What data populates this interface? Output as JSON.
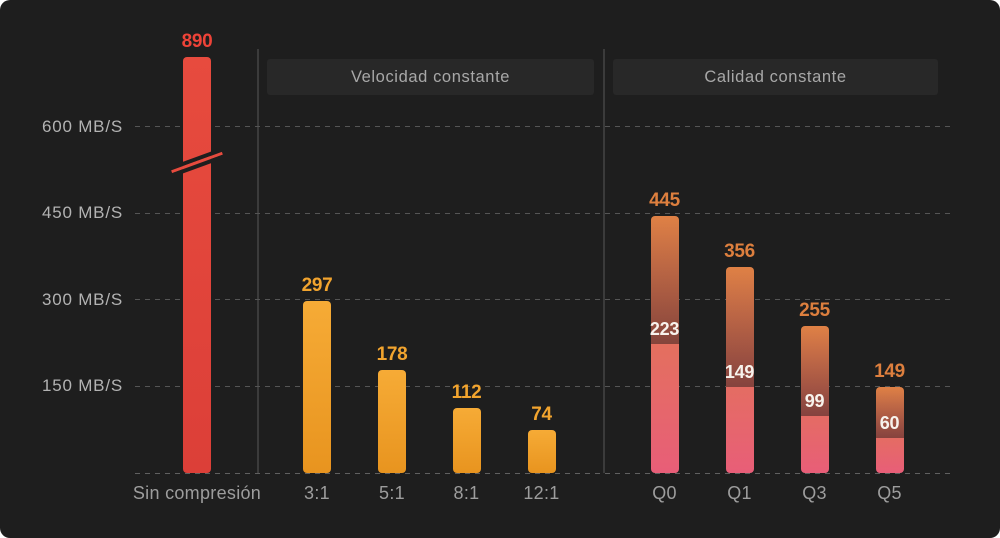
{
  "chart_data": {
    "type": "bar",
    "title": "",
    "unit": "MB/S",
    "yticks": [
      {
        "label": "600 MB/S",
        "value": 600
      },
      {
        "label": "450 MB/S",
        "value": 450
      },
      {
        "label": "300 MB/S",
        "value": 300
      },
      {
        "label": "150 MB/S",
        "value": 150
      }
    ],
    "ylim": [
      0,
      650
    ],
    "grid": "horizontal dashed gridlines on dark background, dashed baseline",
    "axis_break": {
      "note": "diagonal break mark across first bar between the 450 and 600 gridlines; bar value 890 exceeds the visible axis range",
      "bar": "Sin compresión"
    },
    "legend": "none",
    "groups": [
      {
        "header": null,
        "bars": [
          {
            "category": "Sin compresión",
            "value": 890,
            "clipped": true
          }
        ]
      },
      {
        "header": "Velocidad constante",
        "bars": [
          {
            "category": "3:1",
            "value": 297
          },
          {
            "category": "5:1",
            "value": 178
          },
          {
            "category": "8:1",
            "value": 112
          },
          {
            "category": "12:1",
            "value": 74
          }
        ]
      },
      {
        "header": "Calidad constante",
        "bars": [
          {
            "category": "Q0",
            "value": 445,
            "inner_value": 223
          },
          {
            "category": "Q1",
            "value": 356,
            "inner_value": 149
          },
          {
            "category": "Q3",
            "value": 255,
            "inner_value": 99
          },
          {
            "category": "Q5",
            "value": 149,
            "inner_value": 60
          }
        ]
      }
    ],
    "colors": {
      "background": "#1e1e1e",
      "panel": "#282828",
      "grid_line": "#555555",
      "baseline": "#606060",
      "separator": "#3b3b3b",
      "y_axis_text": "#b3b3b3",
      "x_axis_text": "#9d9d9d",
      "header_text": "#a8a8a8",
      "red_bar_top": "#e74b3e",
      "red_bar_bottom": "#dc3f38",
      "red_label": "#ee4338",
      "orange_bar_top": "#f6ab36",
      "orange_bar_bottom": "#e8941f",
      "orange_label": "#f2a42e",
      "quality_bar_top": "#df8145",
      "quality_bar_bottom": "#e85e78",
      "quality_label": "#dd7f3e",
      "inner_label": "#f7f2ec"
    }
  }
}
